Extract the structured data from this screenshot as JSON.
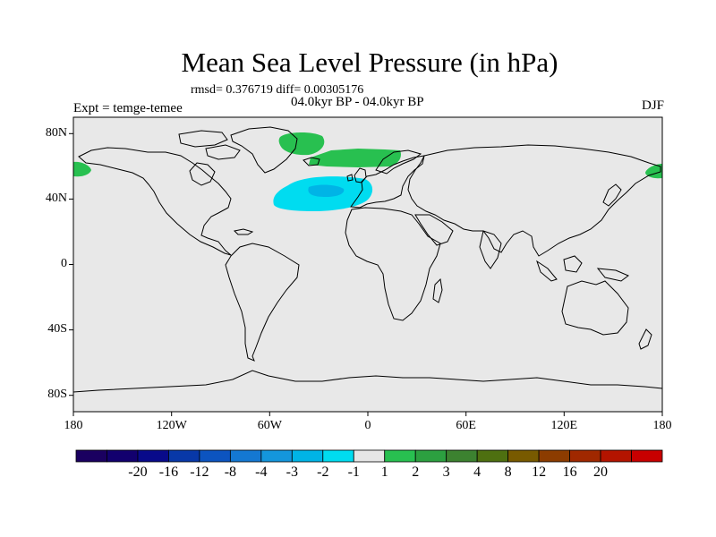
{
  "title": "Mean Sea Level Pressure (in hPa)",
  "stats": "rmsd= 0.376719 diff= 0.00305176",
  "period": "04.0kyr BP - 04.0kyr BP",
  "experiment": "Expt = temge-temee",
  "season": "DJF",
  "colors": {
    "land_background": "#e8e8e8",
    "coastline": "#000000"
  },
  "map": {
    "lon_range": [
      -180,
      180
    ],
    "lat_range": [
      -90,
      90
    ],
    "x_tick_values": [
      -180,
      -120,
      -60,
      0,
      60,
      120,
      180
    ],
    "x_tick_labels": [
      "180",
      "120W",
      "60W",
      "0",
      "60E",
      "120E",
      "180"
    ],
    "y_tick_values": [
      80,
      40,
      0,
      -40,
      -80
    ],
    "y_tick_labels": [
      "80N",
      "40N",
      "0",
      "40S",
      "80S"
    ],
    "anomaly_regions": [
      {
        "name": "north-atlantic-low",
        "level": "-1..-2 hPa",
        "color": "#00dcf0"
      },
      {
        "name": "north-atlantic-low-core",
        "level": "-2..-3 hPa",
        "color": "#00b4e6"
      },
      {
        "name": "greenland-high",
        "level": "1..2 hPa",
        "color": "#28c050"
      },
      {
        "name": "norwegian-sea-high",
        "level": "1..2 hPa",
        "color": "#28c050"
      },
      {
        "name": "north-pacific-high-east",
        "level": "1..2 hPa",
        "color": "#28c050"
      },
      {
        "name": "north-pacific-high-west",
        "level": "1..2 hPa",
        "color": "#28c050"
      }
    ]
  },
  "colorbar": {
    "colors": [
      "#1a0060",
      "#12006e",
      "#080a8a",
      "#0838a8",
      "#0c54c0",
      "#1478d2",
      "#1496dc",
      "#00b4e6",
      "#00dcf0",
      "#e6e6e6",
      "#28c050",
      "#2ca040",
      "#3c8230",
      "#4e7010",
      "#785a00",
      "#8c3c00",
      "#a02800",
      "#b41400",
      "#c80000"
    ],
    "labels": [
      "-20",
      "-16",
      "-12",
      "-8",
      "-4",
      "-3",
      "-2",
      "-1",
      "1",
      "2",
      "3",
      "4",
      "8",
      "12",
      "16",
      "20"
    ]
  }
}
